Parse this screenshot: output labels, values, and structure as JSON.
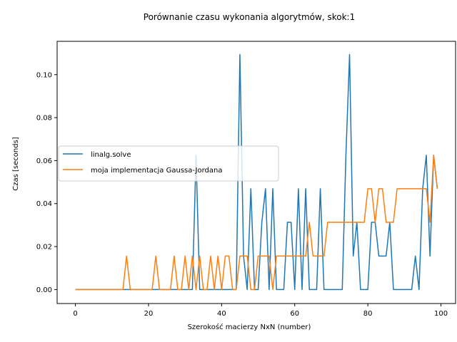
{
  "chart_data": {
    "type": "line",
    "title": "Porównanie czasu wykonania algorytmów, skok:1",
    "xlabel": "Szerokość macierzy NxN (number)",
    "ylabel": "Czas [seconds]",
    "xlim": [
      -5,
      104
    ],
    "ylim": [
      -0.0065,
      0.1155
    ],
    "xticks": [
      0,
      20,
      40,
      60,
      80,
      100
    ],
    "yticks": [
      0.0,
      0.02,
      0.04,
      0.06,
      0.08,
      0.1
    ],
    "ytick_labels": [
      "0.00",
      "0.02",
      "0.04",
      "0.06",
      "0.08",
      "0.10"
    ],
    "legend_position": "center-left",
    "grid": false,
    "colors": {
      "linalg": "#1f77b4",
      "gauss": "#ff7f0e"
    },
    "series": [
      {
        "name": "linalg.solve",
        "x": [
          0,
          1,
          2,
          3,
          4,
          5,
          6,
          7,
          8,
          9,
          10,
          11,
          12,
          13,
          14,
          15,
          16,
          17,
          18,
          19,
          20,
          21,
          22,
          23,
          24,
          25,
          26,
          27,
          28,
          29,
          30,
          31,
          32,
          33,
          34,
          35,
          36,
          37,
          38,
          39,
          40,
          41,
          42,
          43,
          44,
          45,
          46,
          47,
          48,
          49,
          50,
          51,
          52,
          53,
          54,
          55,
          56,
          57,
          58,
          59,
          60,
          61,
          62,
          63,
          64,
          65,
          66,
          67,
          68,
          69,
          70,
          71,
          72,
          73,
          74,
          75,
          76,
          77,
          78,
          79,
          80,
          81,
          82,
          83,
          84,
          85,
          86,
          87,
          88,
          89,
          90,
          91,
          92,
          93,
          94,
          95,
          96,
          97,
          98,
          99
        ],
        "values": [
          0,
          0,
          0,
          0,
          0,
          0,
          0,
          0,
          0,
          0,
          0,
          0,
          0,
          0,
          0,
          0,
          0,
          0,
          0,
          0,
          0,
          0,
          0,
          0,
          0,
          0,
          0,
          0,
          0,
          0,
          0,
          0,
          0,
          0.0625,
          0,
          0,
          0,
          0,
          0,
          0,
          0,
          0,
          0,
          0,
          0,
          0.1094,
          0.0156,
          0,
          0.0469,
          0,
          0,
          0.0313,
          0.0469,
          0,
          0.0469,
          0,
          0,
          0,
          0.0313,
          0.0313,
          0,
          0.0469,
          0,
          0.0469,
          0,
          0,
          0,
          0.0469,
          0,
          0,
          0,
          0,
          0,
          0,
          0.0625,
          0.1094,
          0.0156,
          0.0313,
          0,
          0,
          0,
          0.0313,
          0.0313,
          0.0156,
          0.0156,
          0.0156,
          0.0313,
          0,
          0,
          0,
          0,
          0,
          0,
          0.0156,
          0,
          0.0469,
          0.0625,
          0.0156,
          0.0625,
          0.0469
        ]
      },
      {
        "name": "moja implementacja Gaussa-Jordana",
        "x": [
          0,
          1,
          2,
          3,
          4,
          5,
          6,
          7,
          8,
          9,
          10,
          11,
          12,
          13,
          14,
          15,
          16,
          17,
          18,
          19,
          20,
          21,
          22,
          23,
          24,
          25,
          26,
          27,
          28,
          29,
          30,
          31,
          32,
          33,
          34,
          35,
          36,
          37,
          38,
          39,
          40,
          41,
          42,
          43,
          44,
          45,
          46,
          47,
          48,
          49,
          50,
          51,
          52,
          53,
          54,
          55,
          56,
          57,
          58,
          59,
          60,
          61,
          62,
          63,
          64,
          65,
          66,
          67,
          68,
          69,
          70,
          71,
          72,
          73,
          74,
          75,
          76,
          77,
          78,
          79,
          80,
          81,
          82,
          83,
          84,
          85,
          86,
          87,
          88,
          89,
          90,
          91,
          92,
          93,
          94,
          95,
          96,
          97,
          98,
          99
        ],
        "values": [
          0,
          0,
          0,
          0,
          0,
          0,
          0,
          0,
          0,
          0,
          0,
          0,
          0,
          0,
          0.0156,
          0,
          0,
          0,
          0,
          0,
          0,
          0,
          0.0156,
          0,
          0,
          0,
          0,
          0.0156,
          0,
          0,
          0.0156,
          0,
          0.0156,
          0,
          0.0156,
          0,
          0,
          0.0156,
          0,
          0.0156,
          0,
          0.0156,
          0.0156,
          0,
          0,
          0.0156,
          0.0156,
          0.0156,
          0,
          0,
          0.0156,
          0.0156,
          0.0156,
          0.0156,
          0,
          0.0156,
          0.0156,
          0.0156,
          0.0156,
          0.0156,
          0.0156,
          0.0156,
          0.0156,
          0.0156,
          0.0313,
          0.0156,
          0.0156,
          0.0156,
          0.0156,
          0.0313,
          0.0313,
          0.0313,
          0.0313,
          0.0313,
          0.0313,
          0.0313,
          0.0313,
          0.0313,
          0.0313,
          0.0313,
          0.0469,
          0.0469,
          0.0313,
          0.0469,
          0.0469,
          0.0313,
          0.0313,
          0.0313,
          0.0469,
          0.0469,
          0.0469,
          0.0469,
          0.0469,
          0.0469,
          0.0469,
          0.0469,
          0.0469,
          0.0313,
          0.0625,
          0.0469
        ]
      }
    ]
  }
}
